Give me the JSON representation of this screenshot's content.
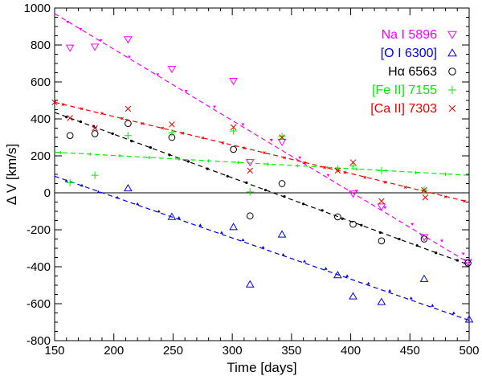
{
  "chart_data": {
    "type": "scatter",
    "title": "",
    "xlabel": "Time [days]",
    "ylabel": "Δ V [km/s]",
    "xlim": [
      150,
      500
    ],
    "ylim": [
      -800,
      1000
    ],
    "x_ticks": [
      150,
      200,
      250,
      300,
      350,
      400,
      450,
      500
    ],
    "y_ticks": [
      -800,
      -600,
      -400,
      -200,
      0,
      200,
      400,
      600,
      800,
      1000
    ],
    "zero_line": 0,
    "legend_position": "top-right",
    "series": [
      {
        "name": "Na I 5896",
        "color": "#ff00ff",
        "marker": "triangle-down",
        "points": [
          [
            163,
            785
          ],
          [
            184,
            790
          ],
          [
            212,
            830
          ],
          [
            249,
            670
          ],
          [
            301,
            605
          ],
          [
            315,
            165
          ],
          [
            342,
            275
          ],
          [
            402,
            -5
          ],
          [
            426,
            -75
          ],
          [
            462,
            -240
          ],
          [
            499,
            -375
          ]
        ],
        "fit": [
          [
            150,
            970
          ],
          [
            500,
            -380
          ]
        ],
        "fit_markers": [
          [
            161,
            925
          ],
          [
            172,
            885
          ],
          [
            189,
            825
          ],
          [
            213,
            735
          ],
          [
            237,
            640
          ],
          [
            261,
            550
          ],
          [
            285,
            465
          ],
          [
            309,
            370
          ],
          [
            333,
            285
          ],
          [
            357,
            190
          ],
          [
            381,
            95
          ],
          [
            405,
            10
          ],
          [
            429,
            -80
          ],
          [
            452,
            -170
          ],
          [
            477,
            -260
          ],
          [
            495,
            -330
          ]
        ]
      },
      {
        "name": "[O I 6300]",
        "color": "#0000ee",
        "marker": "triangle-up",
        "points": [
          [
            212,
            25
          ],
          [
            249,
            -130
          ],
          [
            301,
            -185
          ],
          [
            315,
            -495
          ],
          [
            342,
            -225
          ],
          [
            389,
            -445
          ],
          [
            402,
            -560
          ],
          [
            426,
            -590
          ],
          [
            462,
            -465
          ],
          [
            500,
            -685
          ]
        ],
        "fit": [
          [
            150,
            90
          ],
          [
            500,
            -690
          ]
        ],
        "fit_markers": [
          [
            160,
            65
          ],
          [
            173,
            40
          ],
          [
            187,
            5
          ],
          [
            203,
            -25
          ],
          [
            220,
            -60
          ],
          [
            238,
            -100
          ],
          [
            255,
            -135
          ],
          [
            273,
            -175
          ],
          [
            291,
            -215
          ],
          [
            309,
            -255
          ],
          [
            326,
            -295
          ],
          [
            343,
            -335
          ],
          [
            361,
            -370
          ],
          [
            379,
            -410
          ],
          [
            397,
            -450
          ],
          [
            415,
            -490
          ],
          [
            433,
            -530
          ],
          [
            451,
            -570
          ],
          [
            469,
            -610
          ],
          [
            487,
            -650
          ]
        ]
      },
      {
        "name": "Hα 6563",
        "color": "#000000",
        "marker": "circle",
        "points": [
          [
            163,
            310
          ],
          [
            184,
            320
          ],
          [
            212,
            375
          ],
          [
            249,
            300
          ],
          [
            301,
            235
          ],
          [
            315,
            -125
          ],
          [
            342,
            50
          ],
          [
            389,
            -130
          ],
          [
            402,
            -170
          ],
          [
            426,
            -260
          ],
          [
            462,
            -250
          ],
          [
            499,
            -380
          ]
        ],
        "fit": [
          [
            150,
            435
          ],
          [
            500,
            -390
          ]
        ],
        "fit_markers": [
          [
            160,
            410
          ],
          [
            172,
            385
          ],
          [
            183,
            360
          ],
          [
            199,
            320
          ],
          [
            215,
            280
          ],
          [
            231,
            245
          ],
          [
            247,
            205
          ],
          [
            263,
            170
          ],
          [
            279,
            130
          ],
          [
            296,
            90
          ],
          [
            312,
            55
          ],
          [
            328,
            15
          ],
          [
            344,
            -20
          ],
          [
            360,
            -60
          ],
          [
            376,
            -95
          ],
          [
            393,
            -140
          ],
          [
            409,
            -175
          ],
          [
            425,
            -215
          ],
          [
            441,
            -250
          ],
          [
            456,
            -285
          ],
          [
            472,
            -325
          ],
          [
            490,
            -365
          ]
        ]
      },
      {
        "name": "[Fe II] 7155",
        "color": "#00ee00",
        "marker": "plus",
        "points": [
          [
            163,
            55
          ],
          [
            184,
            95
          ],
          [
            212,
            310
          ],
          [
            249,
            325
          ],
          [
            301,
            335
          ],
          [
            315,
            5
          ],
          [
            342,
            305
          ],
          [
            389,
            130
          ],
          [
            402,
            145
          ],
          [
            426,
            120
          ],
          [
            462,
            15
          ]
        ],
        "fit": [
          [
            150,
            220
          ],
          [
            500,
            95
          ]
        ],
        "fit_markers": [
          [
            155,
            218
          ],
          [
            180,
            209
          ],
          [
            205,
            200
          ],
          [
            230,
            191
          ],
          [
            255,
            182
          ],
          [
            280,
            173
          ],
          [
            305,
            164
          ],
          [
            330,
            155
          ],
          [
            355,
            146
          ],
          [
            380,
            137
          ],
          [
            405,
            128
          ],
          [
            430,
            119
          ],
          [
            455,
            110
          ],
          [
            480,
            101
          ]
        ]
      },
      {
        "name": "[Ca II] 7303",
        "color": "#ee0000",
        "marker": "cross",
        "points": [
          [
            150,
            490
          ],
          [
            163,
            405
          ],
          [
            184,
            350
          ],
          [
            212,
            455
          ],
          [
            249,
            370
          ],
          [
            301,
            355
          ],
          [
            315,
            120
          ],
          [
            342,
            300
          ],
          [
            389,
            120
          ],
          [
            402,
            165
          ],
          [
            426,
            -45
          ],
          [
            462,
            15
          ],
          [
            463,
            -25
          ]
        ],
        "fit": [
          [
            150,
            490
          ],
          [
            500,
            -50
          ]
        ],
        "fit_markers": [
          [
            157,
            478
          ],
          [
            173,
            455
          ],
          [
            190,
            430
          ],
          [
            207,
            402
          ],
          [
            224,
            375
          ],
          [
            241,
            350
          ],
          [
            258,
            323
          ],
          [
            275,
            297
          ],
          [
            292,
            270
          ],
          [
            310,
            243
          ],
          [
            327,
            217
          ],
          [
            344,
            190
          ],
          [
            361,
            163
          ],
          [
            378,
            137
          ],
          [
            395,
            110
          ],
          [
            412,
            83
          ],
          [
            429,
            57
          ],
          [
            446,
            30
          ],
          [
            463,
            3
          ],
          [
            480,
            -22
          ],
          [
            496,
            -45
          ]
        ]
      }
    ]
  }
}
